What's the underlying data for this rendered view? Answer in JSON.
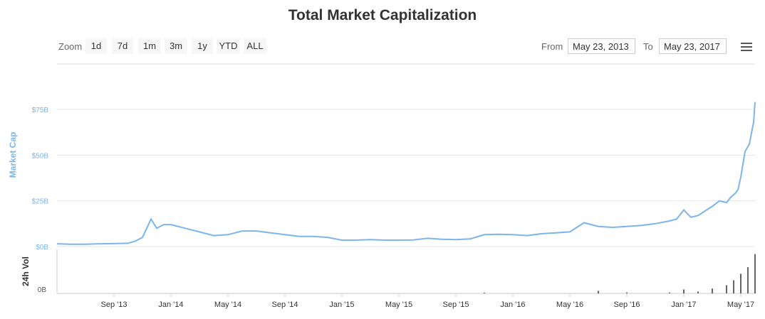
{
  "title": "Total Market Capitalization",
  "toolbar": {
    "zoom_label": "Zoom",
    "buttons": [
      "1d",
      "7d",
      "1m",
      "3m",
      "1y",
      "YTD",
      "ALL"
    ],
    "from_label": "From",
    "from_value": "May 23, 2013",
    "to_label": "To",
    "to_value": "May 23, 2017",
    "menu_icon": "hamburger-icon"
  },
  "chart_data": {
    "type": "line",
    "title": "Total Market Capitalization",
    "ylabel": "Market Cap",
    "ylabel2": "24h Vol",
    "yticks": [
      "$0B",
      "$25B",
      "$50B",
      "$75B"
    ],
    "ytick_values": [
      0,
      25,
      50,
      75
    ],
    "ylim": [
      0,
      75
    ],
    "vol_ytick": "0B",
    "xticks": [
      "Sep '13",
      "Jan '14",
      "May '14",
      "Sep '14",
      "Jan '15",
      "May '15",
      "Sep '15",
      "Jan '16",
      "May '16",
      "Sep '16",
      "Jan '17",
      "May '17"
    ],
    "xtick_months": [
      4,
      8,
      12,
      16,
      20,
      24,
      28,
      32,
      36,
      40,
      44,
      48
    ],
    "line_color": "#7cb5ec",
    "series": [
      {
        "name": "Market Cap",
        "x_months": [
          0,
          1,
          2,
          3,
          4,
          5,
          5.5,
          6,
          6.3,
          6.6,
          7,
          7.5,
          8,
          9,
          10,
          11,
          12,
          13,
          14,
          15,
          16,
          17,
          18,
          19,
          20,
          21,
          22,
          23,
          24,
          25,
          26,
          27,
          28,
          29,
          30,
          31,
          32,
          33,
          34,
          35,
          36,
          37,
          38,
          39,
          40,
          41,
          42,
          43,
          43.5,
          44,
          44.5,
          45,
          46,
          46.5,
          47,
          47.3,
          47.6,
          47.8,
          48,
          48.3,
          48.6,
          48.9,
          49
        ],
        "values": [
          1.5,
          1.3,
          1.3,
          1.5,
          1.6,
          1.8,
          3,
          5,
          10,
          15,
          10,
          12,
          12,
          10,
          8,
          6,
          6.5,
          8.5,
          8.5,
          7.5,
          6.5,
          5.5,
          5.5,
          5,
          3.5,
          3.5,
          3.8,
          3.5,
          3.5,
          3.6,
          4.5,
          4,
          3.8,
          4.2,
          6.5,
          6.7,
          6.5,
          6,
          7,
          7.5,
          8,
          13,
          11,
          10.5,
          11,
          11.5,
          12.5,
          14,
          15,
          20,
          16,
          17,
          22,
          25,
          24,
          27,
          29,
          31,
          38,
          52,
          56,
          68,
          79
        ]
      }
    ],
    "volume": {
      "x_months": [
        30,
        38,
        40,
        43,
        44,
        45,
        46,
        47,
        47.5,
        48,
        48.5,
        49
      ],
      "values": [
        0.2,
        0.8,
        0.3,
        0.3,
        1.2,
        0.6,
        1.5,
        2.5,
        4,
        6,
        8,
        12
      ],
      "ylim": [
        0,
        13
      ]
    }
  }
}
